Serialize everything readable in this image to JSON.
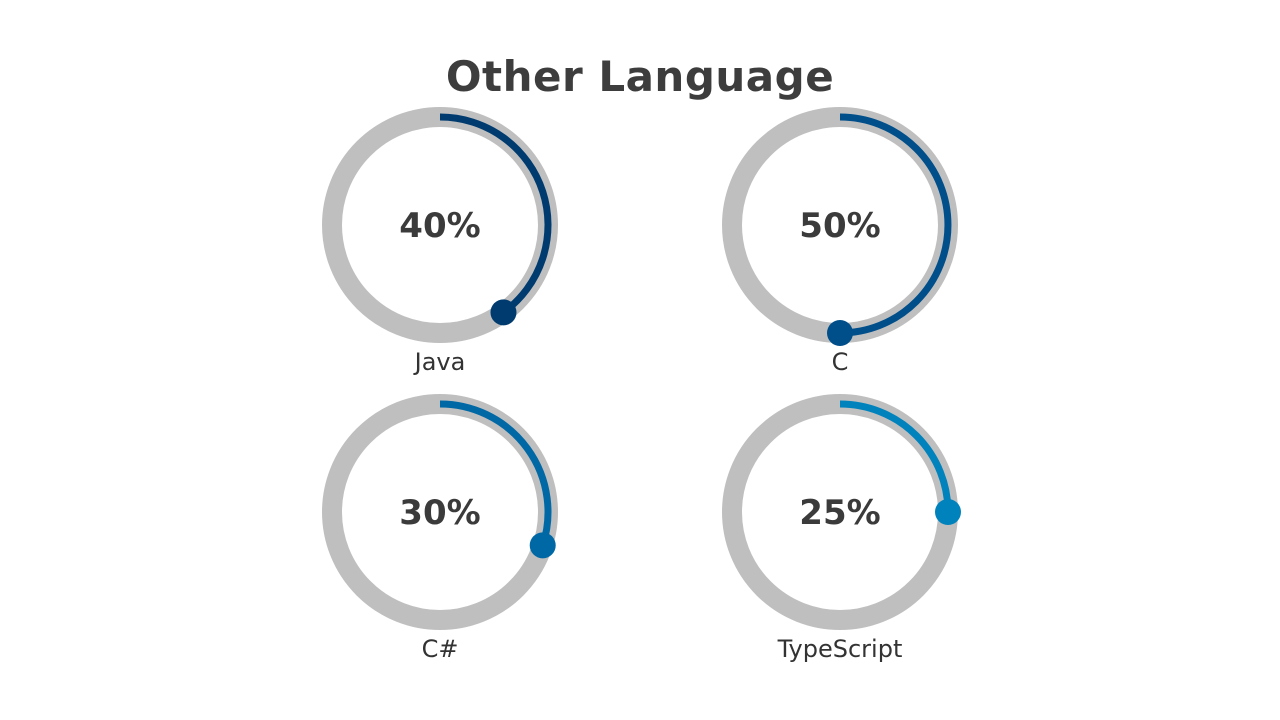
{
  "title": "Other Language",
  "chart_data": {
    "type": "pie",
    "title": "Other Language",
    "track_color": "#bfbfbf",
    "items": [
      {
        "label": "Java",
        "value": 40,
        "display": "40%",
        "color": "#003b6f"
      },
      {
        "label": "C",
        "value": 50,
        "display": "50%",
        "color": "#004e8a"
      },
      {
        "label": "C#",
        "value": 30,
        "display": "30%",
        "color": "#0068a5"
      },
      {
        "label": "TypeScript",
        "value": 25,
        "display": "25%",
        "color": "#0082bd"
      }
    ]
  }
}
